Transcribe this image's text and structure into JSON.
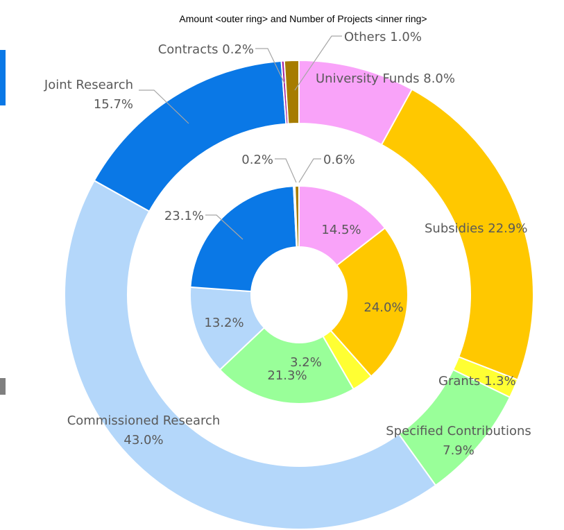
{
  "chart_data": {
    "type": "donut",
    "title": "Amount <outer ring> and Number of Projects <inner ring>",
    "categories": [
      "University Funds",
      "Subsidies",
      "Grants",
      "Specified Contributions",
      "Commissioned Research",
      "Joint Research",
      "Contracts",
      "Others"
    ],
    "colors": [
      "#f9a3f9",
      "#ffc800",
      "#ffff33",
      "#99ff99",
      "#b4d7fa",
      "#0a78e6",
      "#a020a0",
      "#a67c00"
    ],
    "series": [
      {
        "values": [
          8.0,
          22.9,
          1.3,
          7.9,
          43.0,
          15.7,
          0.2,
          1.0
        ],
        "value_labels": [
          "8.0%",
          "22.9%",
          "1.3%",
          "7.9%",
          "43.0%",
          "15.7%",
          "0.2%",
          "1.0%"
        ]
      },
      {
        "values": [
          14.5,
          24.0,
          3.2,
          21.3,
          13.2,
          23.1,
          0.2,
          0.6
        ],
        "value_labels": [
          "14.5%",
          "24.0%",
          "3.2%",
          "21.3%",
          "13.2%",
          "23.1%",
          "0.2%",
          "0.6%"
        ]
      }
    ]
  }
}
